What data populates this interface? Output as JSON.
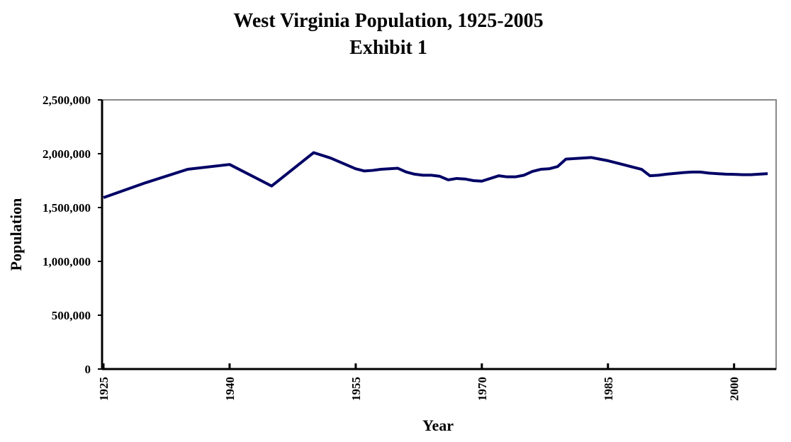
{
  "chart_data": {
    "type": "line",
    "title": "West Virginia Population, 1925-2005",
    "subtitle": "Exhibit 1",
    "x_label": "Year",
    "y_label": "Population",
    "x": [
      1925,
      1930,
      1935,
      1940,
      1945,
      1950,
      1952,
      1955,
      1956,
      1957,
      1958,
      1959,
      1960,
      1961,
      1962,
      1963,
      1964,
      1965,
      1966,
      1967,
      1968,
      1969,
      1970,
      1972,
      1973,
      1974,
      1975,
      1976,
      1977,
      1978,
      1979,
      1980,
      1982,
      1983,
      1984,
      1985,
      1987,
      1989,
      1990,
      1991,
      1992,
      1994,
      1995,
      1996,
      1997,
      1999,
      2000,
      2001,
      2002,
      2003,
      2004
    ],
    "series": [
      {
        "name": "Population",
        "color": "#000066",
        "values": [
          1592000,
          1730000,
          1855000,
          1900000,
          1700000,
          2010000,
          1960000,
          1860000,
          1840000,
          1845000,
          1855000,
          1860000,
          1865000,
          1830000,
          1810000,
          1800000,
          1800000,
          1790000,
          1757000,
          1770000,
          1765000,
          1750000,
          1745000,
          1795000,
          1785000,
          1785000,
          1800000,
          1835000,
          1855000,
          1860000,
          1880000,
          1950000,
          1960000,
          1965000,
          1950000,
          1935000,
          1895000,
          1855000,
          1795000,
          1800000,
          1810000,
          1825000,
          1830000,
          1830000,
          1820000,
          1810000,
          1808000,
          1805000,
          1805000,
          1810000,
          1815000
        ]
      }
    ],
    "xlim": [
      1925,
      2005
    ],
    "xticks": [
      1925,
      1940,
      1955,
      1970,
      1985,
      2000
    ],
    "ylim": [
      0,
      2500000
    ],
    "yticks": [
      0,
      {
        "value": 500000,
        "label": "500,000"
      },
      {
        "value": 1000000,
        "label": "1,000,000"
      },
      {
        "value": 1500000,
        "label": "1,500,000"
      },
      {
        "value": 2000000,
        "label": "2,000,000"
      },
      {
        "value": 2500000,
        "label": "2,500,000"
      }
    ],
    "grid": false
  }
}
